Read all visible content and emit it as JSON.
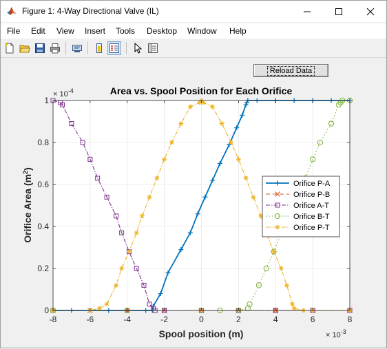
{
  "window": {
    "title": "Figure 1: 4-Way Directional Valve (IL)",
    "icon": "matlab-icon"
  },
  "menu": [
    "File",
    "Edit",
    "View",
    "Insert",
    "Tools",
    "Desktop",
    "Window",
    "Help"
  ],
  "toolbar": {
    "buttons": [
      "new-figure-icon",
      "open-file-icon",
      "save-icon",
      "print-icon",
      "print-preview-icon",
      "link-plot-icon",
      "insert-legend-icon",
      "edit-plot-arrow-icon",
      "property-inspector-icon"
    ]
  },
  "reload_button": {
    "label": "Reload Data"
  },
  "chart_data": {
    "type": "line",
    "title": "Area vs. Spool Position for Each Orifice",
    "xlabel": "Spool position (m)",
    "ylabel": "Orifice Area (m",
    "ylabel_sup": "2",
    "ylabel_end": ")",
    "x_exponent_base": "× 10",
    "x_exponent_power": "-3",
    "y_exponent_base": "× 10",
    "y_exponent_power": "-4",
    "xlim": [
      -8,
      8
    ],
    "ylim": [
      0,
      1
    ],
    "xticks": [
      -8,
      -6,
      -4,
      -2,
      0,
      2,
      4,
      6,
      8
    ],
    "xtick_labels": [
      "-8",
      "-6",
      "-4",
      "-2",
      "0",
      "2",
      "4",
      "6",
      "8"
    ],
    "yticks": [
      0,
      0.2,
      0.4,
      0.6,
      0.8,
      1
    ],
    "ytick_labels": [
      "0",
      "0.2",
      "0.4",
      "0.6",
      "0.8",
      "1"
    ],
    "grid": true,
    "legend_placement": "right",
    "series": [
      {
        "name": "Orifice P-A",
        "color": "#0072bd",
        "dash": "",
        "marker": "plus",
        "points": [
          [
            -8,
            0
          ],
          [
            -7,
            0
          ],
          [
            -6,
            0
          ],
          [
            -5,
            0
          ],
          [
            -4,
            0
          ],
          [
            -3,
            0
          ],
          [
            -2.65,
            0
          ],
          [
            -2.6,
            0.02
          ],
          [
            -2.2,
            0.08
          ],
          [
            -1.8,
            0.18
          ],
          [
            -1.1,
            0.29
          ],
          [
            -0.6,
            0.37
          ],
          [
            -0.2,
            0.46
          ],
          [
            0.2,
            0.54
          ],
          [
            0.6,
            0.62
          ],
          [
            1.0,
            0.7
          ],
          [
            1.5,
            0.79
          ],
          [
            1.9,
            0.87
          ],
          [
            2.2,
            0.93
          ],
          [
            2.4,
            0.98
          ],
          [
            2.45,
            0.99
          ],
          [
            2.5,
            1
          ],
          [
            3.0,
            1
          ],
          [
            4,
            1
          ],
          [
            5,
            1
          ],
          [
            6,
            1
          ],
          [
            7,
            1
          ],
          [
            8,
            1
          ]
        ]
      },
      {
        "name": "Orifice P-B",
        "color": "#d95319",
        "dash": "6,4",
        "marker": "x",
        "points": [
          [
            -8,
            0
          ],
          [
            -6,
            0
          ],
          [
            -4,
            0
          ],
          [
            -2,
            0
          ],
          [
            0,
            0
          ],
          [
            2,
            0
          ],
          [
            4,
            0
          ],
          [
            6,
            0
          ],
          [
            8,
            0
          ]
        ]
      },
      {
        "name": "Orifice A-T",
        "color": "#7e2f8e",
        "dash": "6,2,1.5,2",
        "marker": "square",
        "points": [
          [
            -8,
            1
          ],
          [
            -7.6,
            0.99
          ],
          [
            -7.5,
            0.98
          ],
          [
            -7.0,
            0.89
          ],
          [
            -6.4,
            0.8
          ],
          [
            -6.0,
            0.72
          ],
          [
            -5.6,
            0.63
          ],
          [
            -5.1,
            0.54
          ],
          [
            -4.6,
            0.45
          ],
          [
            -4.3,
            0.37
          ],
          [
            -3.9,
            0.28
          ],
          [
            -3.5,
            0.2
          ],
          [
            -3.1,
            0.12
          ],
          [
            -2.8,
            0.03
          ],
          [
            -2.6,
            0.01
          ],
          [
            -2.5,
            0
          ],
          [
            -2,
            0
          ],
          [
            0,
            0
          ],
          [
            2,
            0
          ],
          [
            4,
            0
          ],
          [
            6,
            0
          ],
          [
            8,
            0
          ]
        ]
      },
      {
        "name": "Orifice B-T",
        "color": "#77ac30",
        "dash": "1.5,3",
        "marker": "circle",
        "points": [
          [
            -8,
            0
          ],
          [
            -4,
            0
          ],
          [
            0,
            0
          ],
          [
            1.0,
            0
          ],
          [
            2.0,
            0
          ],
          [
            2.5,
            0.01
          ],
          [
            2.6,
            0.03
          ],
          [
            3.1,
            0.12
          ],
          [
            3.5,
            0.2
          ],
          [
            3.9,
            0.28
          ],
          [
            4.3,
            0.37
          ],
          [
            4.7,
            0.45
          ],
          [
            5.1,
            0.54
          ],
          [
            5.6,
            0.63
          ],
          [
            6.0,
            0.72
          ],
          [
            6.4,
            0.8
          ],
          [
            7.0,
            0.89
          ],
          [
            7.4,
            0.98
          ],
          [
            7.5,
            0.99
          ],
          [
            7.6,
            1
          ],
          [
            8,
            1
          ]
        ]
      },
      {
        "name": "Orifice P-T",
        "color": "#edb120",
        "dash": "6,2,1.5,2",
        "marker": "star",
        "points": [
          [
            -8,
            0
          ],
          [
            -6,
            0
          ],
          [
            -5.5,
            0.01
          ],
          [
            -5.1,
            0.03
          ],
          [
            -4.6,
            0.12
          ],
          [
            -4.3,
            0.2
          ],
          [
            -3.9,
            0.28
          ],
          [
            -3.5,
            0.37
          ],
          [
            -3.2,
            0.45
          ],
          [
            -2.8,
            0.54
          ],
          [
            -2.4,
            0.63
          ],
          [
            -2.0,
            0.72
          ],
          [
            -1.6,
            0.8
          ],
          [
            -1.1,
            0.89
          ],
          [
            -0.6,
            0.97
          ],
          [
            -0.1,
            0.99
          ],
          [
            0,
            1
          ],
          [
            0.1,
            0.99
          ],
          [
            0.6,
            0.97
          ],
          [
            1.1,
            0.89
          ],
          [
            1.6,
            0.8
          ],
          [
            2.0,
            0.72
          ],
          [
            2.4,
            0.63
          ],
          [
            2.8,
            0.54
          ],
          [
            3.2,
            0.45
          ],
          [
            3.5,
            0.37
          ],
          [
            3.9,
            0.28
          ],
          [
            4.3,
            0.2
          ],
          [
            4.6,
            0.12
          ],
          [
            4.9,
            0.03
          ],
          [
            5.0,
            0.01
          ],
          [
            5.5,
            0
          ],
          [
            6,
            0
          ],
          [
            8,
            0
          ]
        ]
      }
    ]
  }
}
